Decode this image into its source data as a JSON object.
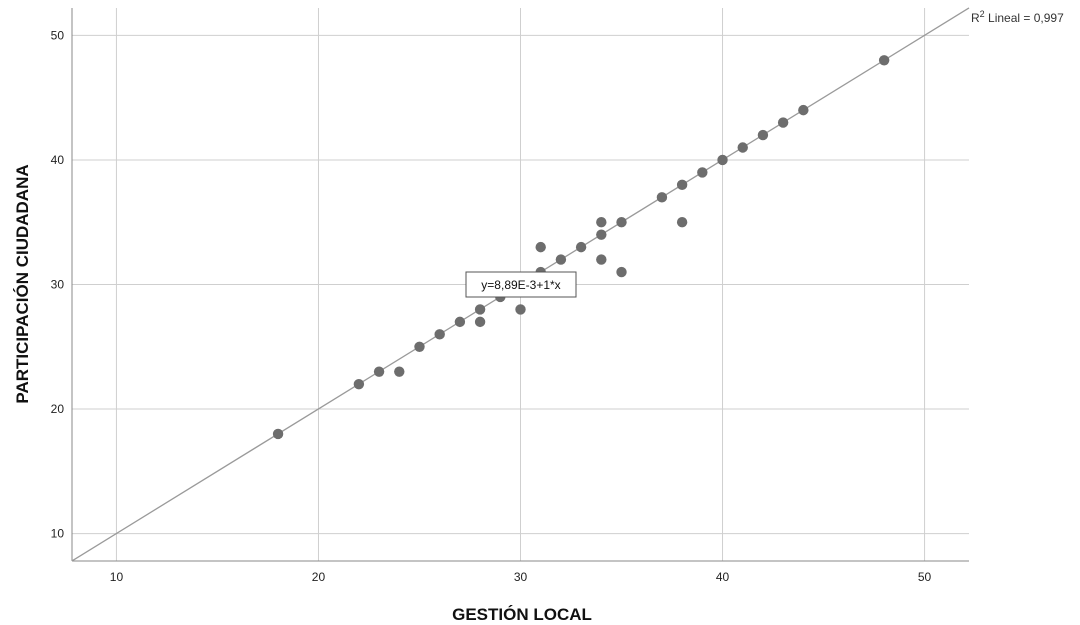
{
  "chart_data": {
    "type": "scatter",
    "xlabel": "GESTIÓN LOCAL",
    "ylabel": "PARTICIPACIÓN CIUDADANA",
    "xlim": [
      7.8,
      52.2
    ],
    "ylim": [
      7.8,
      52.2
    ],
    "x_ticks": [
      10,
      20,
      30,
      40,
      50
    ],
    "y_ticks": [
      10,
      20,
      30,
      40,
      50
    ],
    "grid": true,
    "points": [
      [
        18,
        18
      ],
      [
        22,
        22
      ],
      [
        23,
        23
      ],
      [
        24,
        23
      ],
      [
        25,
        25
      ],
      [
        26,
        26
      ],
      [
        27,
        27
      ],
      [
        28,
        28
      ],
      [
        28,
        27
      ],
      [
        29,
        29
      ],
      [
        30,
        28
      ],
      [
        31,
        31
      ],
      [
        31,
        33
      ],
      [
        32,
        32
      ],
      [
        33,
        33
      ],
      [
        34,
        34
      ],
      [
        34,
        35
      ],
      [
        34,
        32
      ],
      [
        35,
        35
      ],
      [
        35,
        31
      ],
      [
        37,
        37
      ],
      [
        38,
        38
      ],
      [
        38,
        35
      ],
      [
        39,
        39
      ],
      [
        40,
        40
      ],
      [
        41,
        41
      ],
      [
        42,
        42
      ],
      [
        43,
        43
      ],
      [
        44,
        44
      ],
      [
        48,
        48
      ]
    ],
    "fit_line": {
      "intercept": 0.00889,
      "slope": 1
    },
    "equation_label": "y=8,89E-3+1*x",
    "r2_label": {
      "prefix": "R",
      "superscript": "2",
      "text": " Lineal = 0,997"
    },
    "colors": {
      "points": "#6d6d6d",
      "line": "#9a9a9a",
      "grid": "#cfcfcf",
      "axis": "#888888"
    }
  }
}
